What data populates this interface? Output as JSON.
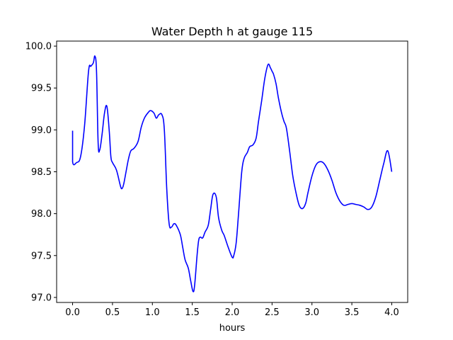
{
  "chart_data": {
    "type": "line",
    "title": "Water Depth h at gauge 115",
    "xlabel": "hours",
    "ylabel": "",
    "xlim": [
      -0.2,
      4.2
    ],
    "ylim": [
      96.94,
      100.06
    ],
    "xticks": [
      0.0,
      0.5,
      1.0,
      1.5,
      2.0,
      2.5,
      3.0,
      3.5,
      4.0
    ],
    "xtick_labels": [
      "0.0",
      "0.5",
      "1.0",
      "1.5",
      "2.0",
      "2.5",
      "3.0",
      "3.5",
      "4.0"
    ],
    "yticks": [
      97.0,
      97.5,
      98.0,
      98.5,
      99.0,
      99.5,
      100.0
    ],
    "ytick_labels": [
      "97.0",
      "97.5",
      "98.0",
      "98.5",
      "99.0",
      "99.5",
      "100.0"
    ],
    "grid": false,
    "series": [
      {
        "color": "#0000ff",
        "x": [
          0.0,
          0.0,
          0.05,
          0.1,
          0.15,
          0.2,
          0.23,
          0.26,
          0.28,
          0.3,
          0.32,
          0.34,
          0.37,
          0.4,
          0.43,
          0.46,
          0.48,
          0.5,
          0.55,
          0.6,
          0.62,
          0.64,
          0.67,
          0.7,
          0.73,
          0.77,
          0.82,
          0.86,
          0.9,
          0.95,
          0.98,
          1.02,
          1.05,
          1.08,
          1.12,
          1.15,
          1.18,
          1.21,
          1.24,
          1.27,
          1.3,
          1.35,
          1.38,
          1.41,
          1.45,
          1.48,
          1.51,
          1.53,
          1.56,
          1.58,
          1.6,
          1.63,
          1.66,
          1.7,
          1.73,
          1.76,
          1.8,
          1.83,
          1.87,
          1.9,
          1.95,
          2.0,
          2.02,
          2.05,
          2.08,
          2.12,
          2.15,
          2.19,
          2.22,
          2.26,
          2.3,
          2.33,
          2.37,
          2.41,
          2.45,
          2.48,
          2.5,
          2.52,
          2.55,
          2.58,
          2.62,
          2.65,
          2.68,
          2.72,
          2.76,
          2.8,
          2.84,
          2.88,
          2.92,
          2.95,
          3.0,
          3.05,
          3.1,
          3.15,
          3.2,
          3.25,
          3.3,
          3.35,
          3.4,
          3.45,
          3.5,
          3.55,
          3.6,
          3.65,
          3.7,
          3.75,
          3.8,
          3.85,
          3.9,
          3.95,
          4.0
        ],
        "y": [
          98.99,
          98.62,
          98.61,
          98.68,
          99.05,
          99.7,
          99.76,
          99.8,
          99.88,
          99.7,
          98.85,
          98.76,
          98.95,
          99.2,
          99.28,
          98.98,
          98.68,
          98.61,
          98.52,
          98.33,
          98.3,
          98.35,
          98.5,
          98.65,
          98.75,
          98.78,
          98.86,
          99.03,
          99.14,
          99.21,
          99.23,
          99.2,
          99.14,
          99.18,
          99.18,
          99.0,
          98.3,
          97.88,
          97.84,
          97.88,
          97.86,
          97.75,
          97.6,
          97.45,
          97.35,
          97.2,
          97.07,
          97.15,
          97.5,
          97.68,
          97.72,
          97.71,
          97.78,
          97.86,
          98.05,
          98.23,
          98.2,
          97.95,
          97.8,
          97.74,
          97.6,
          97.48,
          97.5,
          97.65,
          98.0,
          98.5,
          98.66,
          98.73,
          98.8,
          98.82,
          98.9,
          99.1,
          99.35,
          99.62,
          99.78,
          99.74,
          99.7,
          99.66,
          99.55,
          99.38,
          99.2,
          99.1,
          99.02,
          98.75,
          98.45,
          98.25,
          98.1,
          98.06,
          98.12,
          98.25,
          98.45,
          98.58,
          98.62,
          98.6,
          98.52,
          98.4,
          98.25,
          98.15,
          98.1,
          98.11,
          98.12,
          98.11,
          98.1,
          98.08,
          98.05,
          98.08,
          98.2,
          98.4,
          98.6,
          98.75,
          98.5
        ],
        "__note": ""
      }
    ]
  }
}
